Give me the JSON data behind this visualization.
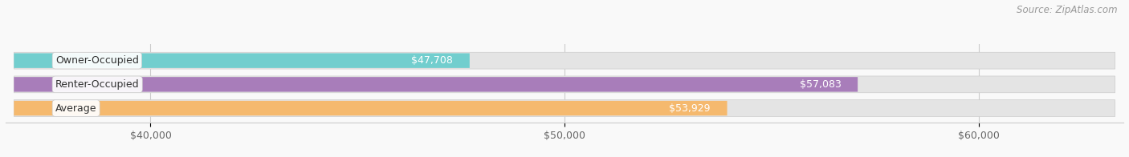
{
  "source": "Source: ZipAtlas.com",
  "categories": [
    "Owner-Occupied",
    "Renter-Occupied",
    "Average"
  ],
  "values": [
    47708,
    57083,
    53929
  ],
  "bar_colors": [
    "#72cece",
    "#a87dba",
    "#f5b96e"
  ],
  "bar_bg_color": "#e4e4e4",
  "bar_border_color": "#cccccc",
  "value_labels": [
    "$47,708",
    "$57,083",
    "$53,929"
  ],
  "xlim_min": 36500,
  "xlim_max": 63500,
  "xticks": [
    40000,
    50000,
    60000
  ],
  "xtick_labels": [
    "$40,000",
    "$50,000",
    "$60,000"
  ],
  "title_fontsize": 11.5,
  "label_fontsize": 9,
  "value_fontsize": 9,
  "source_fontsize": 8.5,
  "background_color": "#f9f9f9"
}
